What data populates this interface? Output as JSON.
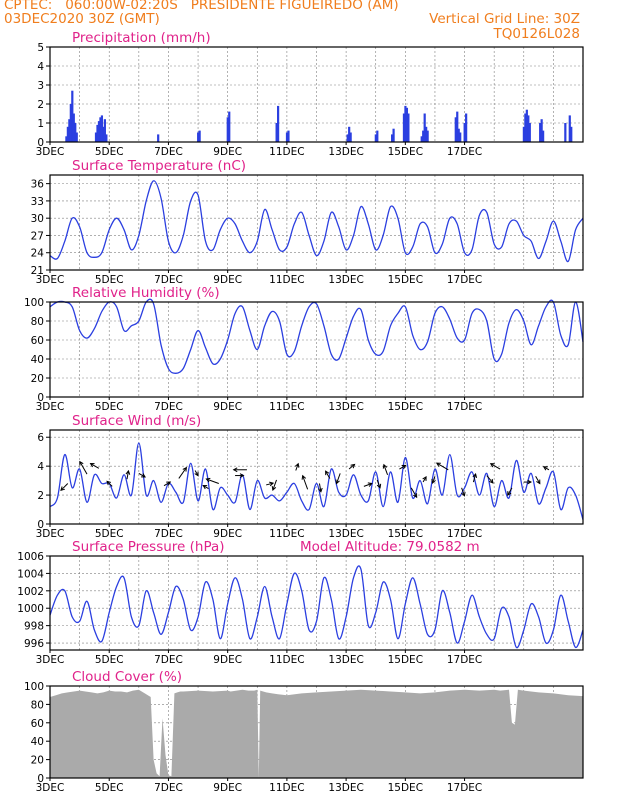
{
  "header": {
    "line1": "CPTEC:   060:00W-02:20S   PRESIDENTE FIGUEIREDO (AM)",
    "line2_left": "03DEC2020 30Z (GMT)",
    "line2_right": "Vertical Grid Line: 30Z",
    "line3_right": "TQ0126L028"
  },
  "colors": {
    "header": "#f07e1e",
    "panel_title": "#e0228a",
    "series": "#2b3fe0",
    "bars": "#2b3fe0",
    "cloud": "#aaaaaa",
    "grid": "#808080"
  },
  "x_tick_labels": [
    "3DEC",
    "5DEC",
    "7DEC",
    "9DEC",
    "11DEC",
    "13DEC",
    "15DEC",
    "17DEC"
  ],
  "chart_data": [
    {
      "type": "bar",
      "title": "Precipitation (mm/h)",
      "ylim": [
        0,
        5
      ],
      "yticks": [
        0,
        1,
        2,
        3,
        4,
        5
      ],
      "x_unit": "days since 03DEC 00Z",
      "x": [
        0.55,
        0.6,
        0.65,
        0.7,
        0.75,
        0.8,
        0.85,
        0.9,
        1.55,
        1.6,
        1.65,
        1.7,
        1.75,
        1.8,
        1.85,
        1.9,
        3.65,
        5.0,
        5.05,
        6.0,
        6.05,
        7.65,
        7.7,
        8.0,
        8.05,
        10.05,
        10.1,
        10.15,
        11.0,
        11.05,
        11.55,
        11.6,
        11.95,
        12.0,
        12.05,
        12.1,
        12.55,
        12.6,
        12.65,
        12.7,
        12.75,
        13.7,
        13.75,
        13.8,
        13.85,
        14.0,
        14.05,
        16.0,
        16.05,
        16.1,
        16.15,
        16.2,
        16.55,
        16.6,
        16.65,
        17.4,
        17.55,
        17.6
      ],
      "values": [
        0.3,
        0.8,
        1.2,
        2.0,
        2.7,
        1.5,
        1.0,
        0.5,
        0.5,
        0.9,
        1.1,
        1.3,
        1.4,
        0.8,
        1.2,
        0.4,
        0.4,
        0.5,
        0.6,
        1.3,
        1.6,
        1.0,
        1.9,
        0.5,
        0.6,
        0.4,
        0.8,
        0.5,
        0.4,
        0.6,
        0.4,
        0.7,
        1.5,
        1.9,
        1.8,
        1.5,
        0.3,
        0.6,
        1.5,
        0.8,
        0.6,
        1.3,
        1.6,
        0.7,
        0.5,
        1.0,
        1.5,
        0.8,
        1.5,
        1.7,
        1.4,
        1.0,
        1.0,
        1.2,
        0.6,
        1.0,
        1.4,
        0.8
      ]
    },
    {
      "type": "line",
      "title": "Surface Temperature (nC)",
      "ylim": [
        21,
        37.5
      ],
      "yticks": [
        21,
        24,
        27,
        30,
        33,
        36
      ],
      "x_unit": "days since 03DEC 00Z",
      "x": [
        0,
        0.25,
        0.5,
        0.75,
        1,
        1.25,
        1.5,
        1.75,
        2,
        2.25,
        2.5,
        2.75,
        3,
        3.25,
        3.5,
        3.75,
        4,
        4.25,
        4.5,
        4.75,
        5,
        5.25,
        5.5,
        5.75,
        6,
        6.25,
        6.5,
        6.75,
        7,
        7.25,
        7.5,
        7.75,
        8,
        8.25,
        8.5,
        8.75,
        9,
        9.25,
        9.5,
        9.75,
        10,
        10.25,
        10.5,
        10.75,
        11,
        11.25,
        11.5,
        11.75,
        12,
        12.25,
        12.5,
        12.75,
        13,
        13.25,
        13.5,
        13.75,
        14,
        14.25,
        14.5,
        14.75,
        15,
        15.25,
        15.5,
        15.75,
        16,
        16.25,
        16.5,
        16.75,
        17,
        17.25,
        17.5,
        17.75,
        18
      ],
      "values": [
        23.5,
        23.0,
        26.0,
        30.0,
        28.5,
        24.0,
        23.2,
        24.0,
        28.0,
        30.0,
        28.0,
        24.5,
        27.0,
        33.0,
        36.5,
        33.5,
        26.0,
        24.0,
        27.0,
        33.0,
        34.0,
        26.0,
        24.5,
        28.0,
        30.0,
        29.0,
        26.0,
        24.0,
        26.0,
        31.5,
        28.0,
        24.5,
        25.0,
        29.0,
        31.0,
        27.0,
        23.5,
        26.0,
        31.0,
        28.5,
        24.5,
        27.0,
        32.0,
        29.0,
        24.5,
        27.0,
        32.0,
        30.0,
        24.0,
        25.0,
        29.0,
        28.5,
        24.0,
        25.5,
        30.0,
        29.0,
        24.0,
        24.5,
        30.5,
        31.0,
        25.5,
        25.0,
        29.0,
        29.5,
        27.0,
        26.0,
        23.0,
        26.0,
        29.5,
        26.0,
        22.5,
        28.0,
        30.0
      ]
    },
    {
      "type": "line",
      "title": "Relative Humidity (%)",
      "ylim": [
        0,
        100
      ],
      "yticks": [
        0,
        20,
        40,
        60,
        80,
        100
      ],
      "x_unit": "days since 03DEC 00Z",
      "x": [
        0,
        0.25,
        0.5,
        0.75,
        1,
        1.25,
        1.5,
        1.75,
        2,
        2.25,
        2.5,
        2.75,
        3,
        3.25,
        3.5,
        3.75,
        4,
        4.25,
        4.5,
        4.75,
        5,
        5.25,
        5.5,
        5.75,
        6,
        6.25,
        6.5,
        6.75,
        7,
        7.25,
        7.5,
        7.75,
        8,
        8.25,
        8.5,
        8.75,
        9,
        9.25,
        9.5,
        9.75,
        10,
        10.25,
        10.5,
        10.75,
        11,
        11.25,
        11.5,
        11.75,
        12,
        12.25,
        12.5,
        12.75,
        13,
        13.25,
        13.5,
        13.75,
        14,
        14.25,
        14.5,
        14.75,
        15,
        15.25,
        15.5,
        15.75,
        16,
        16.25,
        16.5,
        16.75,
        17,
        17.25,
        17.5,
        17.75,
        18
      ],
      "values": [
        95,
        100,
        100,
        95,
        70,
        62,
        72,
        90,
        100,
        95,
        70,
        75,
        80,
        100,
        98,
        55,
        30,
        25,
        30,
        50,
        70,
        52,
        35,
        40,
        60,
        88,
        95,
        70,
        50,
        75,
        90,
        80,
        45,
        48,
        75,
        95,
        98,
        75,
        45,
        40,
        62,
        85,
        92,
        60,
        45,
        48,
        75,
        88,
        95,
        65,
        50,
        58,
        88,
        95,
        82,
        62,
        60,
        88,
        92,
        80,
        40,
        45,
        78,
        92,
        80,
        55,
        75,
        95,
        100,
        65,
        55,
        100,
        58
      ]
    },
    {
      "type": "line",
      "title": "Surface Wind (m/s)",
      "ylim": [
        0,
        6.5
      ],
      "yticks": [
        0,
        2,
        4,
        6
      ],
      "x_unit": "days since 03DEC 00Z",
      "x": [
        0,
        0.25,
        0.5,
        0.75,
        1,
        1.25,
        1.5,
        1.75,
        2,
        2.25,
        2.5,
        2.75,
        3,
        3.25,
        3.5,
        3.75,
        4,
        4.25,
        4.5,
        4.75,
        5,
        5.25,
        5.5,
        5.75,
        6,
        6.25,
        6.5,
        6.75,
        7,
        7.25,
        7.5,
        7.75,
        8,
        8.25,
        8.5,
        8.75,
        9,
        9.25,
        9.5,
        9.75,
        10,
        10.25,
        10.5,
        10.75,
        11,
        11.25,
        11.5,
        11.75,
        12,
        12.25,
        12.5,
        12.75,
        13,
        13.25,
        13.5,
        13.75,
        14,
        14.25,
        14.5,
        14.75,
        15,
        15.25,
        15.5,
        15.75,
        16,
        16.25,
        16.5,
        16.75,
        17,
        17.25,
        17.5,
        17.75,
        18
      ],
      "values": [
        1.2,
        1.8,
        4.8,
        2.5,
        3.8,
        1.5,
        3.4,
        2.8,
        2.8,
        1.8,
        3.4,
        2.0,
        5.6,
        2.0,
        3.0,
        1.5,
        2.8,
        2.2,
        1.5,
        4.2,
        1.6,
        3.8,
        1.0,
        2.5,
        2.0,
        1.5,
        3.4,
        1.0,
        3.0,
        1.8,
        2.0,
        1.6,
        2.2,
        2.8,
        1.6,
        1.0,
        2.8,
        1.2,
        3.8,
        2.2,
        2.0,
        3.4,
        2.0,
        1.6,
        3.6,
        1.2,
        3.6,
        1.5,
        4.6,
        1.8,
        3.0,
        1.4,
        3.8,
        2.0,
        4.8,
        2.0,
        2.5,
        3.6,
        2.0,
        3.5,
        1.2,
        3.0,
        1.8,
        4.4,
        2.2,
        3.5,
        1.4,
        2.5,
        3.6,
        1.0,
        2.5,
        2.0,
        0.3
      ],
      "arrows": [
        {
          "day": 0.6,
          "speed": 1.6,
          "dir_deg": 225
        },
        {
          "day": 1.25,
          "speed": 2.4,
          "dir_deg": 330
        },
        {
          "day": 1.65,
          "speed": 1.6,
          "dir_deg": 300
        },
        {
          "day": 2.1,
          "speed": 1.2,
          "dir_deg": 315
        },
        {
          "day": 2.6,
          "speed": 1.4,
          "dir_deg": 10
        },
        {
          "day": 3.0,
          "speed": 1.2,
          "dir_deg": 120
        },
        {
          "day": 3.85,
          "speed": 1.2,
          "dir_deg": 60
        },
        {
          "day": 4.35,
          "speed": 2.2,
          "dir_deg": 35
        },
        {
          "day": 4.9,
          "speed": 1.0,
          "dir_deg": 150
        },
        {
          "day": 5.35,
          "speed": 1.0,
          "dir_deg": 300
        },
        {
          "day": 5.7,
          "speed": 2.2,
          "dir_deg": 290
        },
        {
          "day": 6.25,
          "speed": 1.4,
          "dir_deg": 90
        },
        {
          "day": 6.65,
          "speed": 2.2,
          "dir_deg": 270
        },
        {
          "day": 7.3,
          "speed": 1.2,
          "dir_deg": 75
        },
        {
          "day": 7.65,
          "speed": 1.8,
          "dir_deg": 200
        },
        {
          "day": 8.3,
          "speed": 1.2,
          "dir_deg": 20
        },
        {
          "day": 8.7,
          "speed": 2.4,
          "dir_deg": 340
        },
        {
          "day": 9.1,
          "speed": 1.4,
          "dir_deg": 170
        },
        {
          "day": 9.45,
          "speed": 1.4,
          "dir_deg": 330
        },
        {
          "day": 9.8,
          "speed": 1.8,
          "dir_deg": 200
        },
        {
          "day": 10.1,
          "speed": 1.2,
          "dir_deg": 50
        },
        {
          "day": 10.6,
          "speed": 1.4,
          "dir_deg": 70
        },
        {
          "day": 11.05,
          "speed": 1.4,
          "dir_deg": 160
        },
        {
          "day": 11.4,
          "speed": 1.8,
          "dir_deg": 340
        },
        {
          "day": 11.8,
          "speed": 1.2,
          "dir_deg": 60
        },
        {
          "day": 12.2,
          "speed": 1.8,
          "dir_deg": 150
        },
        {
          "day": 12.6,
          "speed": 1.0,
          "dir_deg": 30
        },
        {
          "day": 13.0,
          "speed": 1.2,
          "dir_deg": 200
        },
        {
          "day": 13.45,
          "speed": 2.2,
          "dir_deg": 300
        },
        {
          "day": 13.9,
          "speed": 1.4,
          "dir_deg": 160
        },
        {
          "day": 14.3,
          "speed": 1.4,
          "dir_deg": 15
        },
        {
          "day": 14.75,
          "speed": 1.6,
          "dir_deg": 140
        },
        {
          "day": 15.2,
          "speed": 1.8,
          "dir_deg": 300
        },
        {
          "day": 15.6,
          "speed": 1.4,
          "dir_deg": 210
        },
        {
          "day": 16.0,
          "speed": 1.2,
          "dir_deg": 90
        },
        {
          "day": 16.4,
          "speed": 1.4,
          "dir_deg": 150
        },
        {
          "day": 16.85,
          "speed": 1.0,
          "dir_deg": 300
        }
      ]
    },
    {
      "type": "line",
      "title": "Surface Pressure (hPa)",
      "annotation": "Model Altitude: 79.0582  m",
      "ylim": [
        995.2,
        1006
      ],
      "yticks": [
        996,
        998,
        1000,
        1002,
        1004,
        1006
      ],
      "x_unit": "days since 03DEC 00Z",
      "x": [
        0,
        0.25,
        0.5,
        0.75,
        1,
        1.25,
        1.5,
        1.75,
        2,
        2.25,
        2.5,
        2.75,
        3,
        3.25,
        3.5,
        3.75,
        4,
        4.25,
        4.5,
        4.75,
        5,
        5.25,
        5.5,
        5.75,
        6,
        6.25,
        6.5,
        6.75,
        7,
        7.25,
        7.5,
        7.75,
        8,
        8.25,
        8.5,
        8.75,
        9,
        9.25,
        9.5,
        9.75,
        10,
        10.25,
        10.5,
        10.75,
        11,
        11.25,
        11.5,
        11.75,
        12,
        12.25,
        12.5,
        12.75,
        13,
        13.25,
        13.5,
        13.75,
        14,
        14.25,
        14.5,
        14.75,
        15,
        15.25,
        15.5,
        15.75,
        16,
        16.25,
        16.5,
        16.75,
        17,
        17.25,
        17.5,
        17.75,
        18
      ],
      "values": [
        999.2,
        1001.5,
        1002.0,
        999.0,
        998.5,
        1000.8,
        997.5,
        996.2,
        999.5,
        1002.5,
        1003.5,
        999.0,
        998.0,
        1002.0,
        999.5,
        997.0,
        999.5,
        1002.5,
        1001.0,
        997.5,
        999.0,
        1003.0,
        1001.0,
        996.5,
        1000.5,
        1003.5,
        1001.0,
        996.5,
        999.0,
        1002.5,
        999.0,
        996.5,
        1000.5,
        1004.0,
        1002.0,
        997.5,
        998.5,
        1003.5,
        1001.0,
        996.5,
        999.0,
        1003.5,
        1004.5,
        998.0,
        999.5,
        1003.0,
        1001.0,
        996.5,
        1000.5,
        1003.5,
        1000.5,
        997.0,
        997.5,
        1002.0,
        999.5,
        996.0,
        998.5,
        1001.5,
        999.0,
        997.0,
        996.5,
        1000.0,
        999.0,
        995.5,
        997.5,
        1000.5,
        999.0,
        996.0,
        997.5,
        1001.5,
        998.5,
        995.5,
        997.5
      ]
    },
    {
      "type": "area",
      "title": "Cloud Cover (%)",
      "ylim": [
        0,
        100
      ],
      "yticks": [
        0,
        20,
        40,
        60,
        80,
        100
      ],
      "x_unit": "days since 03DEC 00Z",
      "x": [
        0,
        0.2,
        0.4,
        0.6,
        0.8,
        1,
        1.2,
        1.4,
        1.6,
        1.8,
        2,
        2.2,
        2.4,
        2.6,
        2.8,
        3.0,
        3.2,
        3.4,
        3.5,
        3.6,
        3.7,
        3.8,
        3.9,
        4.0,
        4.1,
        4.2,
        4.3,
        4.4,
        4.5,
        5.0,
        5.5,
        6.0,
        6.1,
        6.3,
        6.5,
        6.7,
        6.9,
        7.0,
        7.05,
        7.1,
        7.3,
        7.5,
        7.7,
        8.0,
        8.5,
        9.0,
        9.5,
        10.0,
        10.5,
        11.0,
        11.5,
        12.0,
        12.5,
        13.0,
        13.5,
        14.0,
        14.5,
        15.0,
        15.2,
        15.5,
        15.6,
        15.7,
        15.8,
        16.0,
        16.5,
        17.0,
        17.5,
        18.0
      ],
      "values": [
        88,
        90,
        92,
        93,
        94,
        95,
        94,
        93,
        92,
        93,
        95,
        94,
        94,
        93,
        95,
        96,
        92,
        88,
        20,
        5,
        2,
        65,
        25,
        3,
        2,
        92,
        93,
        94,
        94,
        95,
        94,
        95,
        94,
        95,
        96,
        95,
        95,
        96,
        0,
        95,
        93,
        92,
        91,
        90,
        92,
        93,
        94,
        95,
        96,
        95,
        94,
        93,
        92,
        93,
        95,
        96,
        95,
        96,
        95,
        96,
        60,
        58,
        96,
        95,
        93,
        92,
        90,
        89
      ]
    }
  ]
}
